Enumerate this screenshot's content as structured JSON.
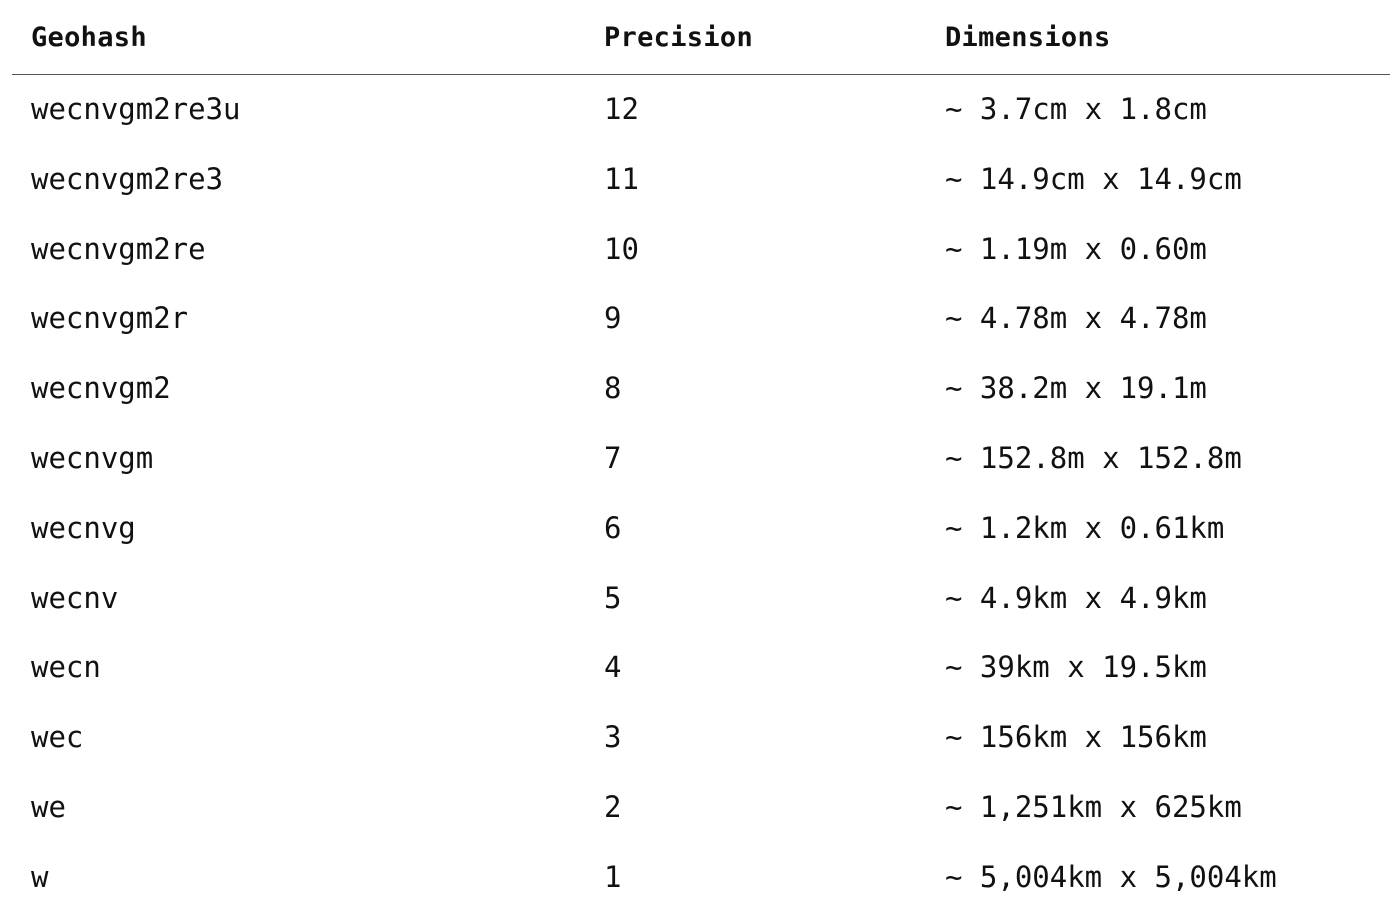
{
  "table": {
    "headers": {
      "geohash": "Geohash",
      "precision": "Precision",
      "dimensions": "Dimensions"
    },
    "rows": [
      {
        "geohash": "wecnvgm2re3u",
        "precision": "12",
        "dimensions": "~ 3.7cm x 1.8cm"
      },
      {
        "geohash": "wecnvgm2re3",
        "precision": "11",
        "dimensions": "~ 14.9cm x 14.9cm"
      },
      {
        "geohash": "wecnvgm2re",
        "precision": "10",
        "dimensions": "~ 1.19m x 0.60m"
      },
      {
        "geohash": "wecnvgm2r",
        "precision": "9",
        "dimensions": "~ 4.78m x 4.78m"
      },
      {
        "geohash": "wecnvgm2",
        "precision": "8",
        "dimensions": "~ 38.2m x 19.1m"
      },
      {
        "geohash": "wecnvgm",
        "precision": "7",
        "dimensions": "~ 152.8m x 152.8m"
      },
      {
        "geohash": "wecnvg",
        "precision": "6",
        "dimensions": "~ 1.2km x 0.61km"
      },
      {
        "geohash": "wecnv",
        "precision": "5",
        "dimensions": "~ 4.9km x 4.9km"
      },
      {
        "geohash": "wecn",
        "precision": "4",
        "dimensions": "~ 39km x 19.5km"
      },
      {
        "geohash": "wec",
        "precision": "3",
        "dimensions": "~ 156km x 156km"
      },
      {
        "geohash": "we",
        "precision": "2",
        "dimensions": "~ 1,251km x 625km"
      },
      {
        "geohash": "w",
        "precision": "1",
        "dimensions": "~ 5,004km x 5,004km"
      }
    ]
  }
}
